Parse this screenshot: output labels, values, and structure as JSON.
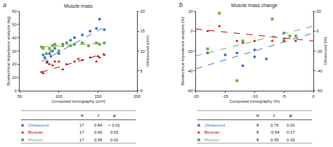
{
  "chart_data": [
    {
      "type": "scatter",
      "label": "a",
      "title": "Muscle mass",
      "x_label": "Computed tomography (cm²)",
      "y_label": "Bioelectrical impedance analysis (kg)",
      "y2_label": "Ultrasound (cm²)",
      "xlim": [
        50,
        200
      ],
      "xticks": [
        50,
        100,
        150,
        200
      ],
      "ylim": [
        0,
        60
      ],
      "yticks": [
        0,
        10,
        20,
        30,
        40,
        50,
        60
      ],
      "y2lim": [
        0,
        20
      ],
      "y2ticks": [
        0,
        5,
        10,
        15,
        20
      ],
      "grid": false,
      "series": [
        {
          "type": "scatter",
          "color": "#4472C4",
          "marker": "circle",
          "x": [
            80,
            82,
            85,
            88,
            90,
            92,
            95,
            100,
            105,
            110,
            115,
            120,
            130,
            140,
            148,
            152,
            158
          ],
          "values": [
            27,
            25,
            22,
            28,
            26,
            30,
            32,
            28,
            35,
            36,
            38,
            40,
            42,
            45,
            47,
            54,
            46
          ]
        },
        {
          "type": "scatter",
          "color": "#C00000",
          "marker": "triangle-up",
          "x": [
            78,
            80,
            85,
            88,
            92,
            95,
            100,
            105,
            110,
            120,
            125,
            130,
            140,
            148,
            150,
            152,
            158
          ],
          "values": [
            14,
            13,
            21,
            20,
            19,
            22,
            22,
            16,
            20,
            22,
            24,
            23,
            25,
            22,
            26,
            25,
            27
          ]
        },
        {
          "type": "scatter",
          "color": "#70AD47",
          "marker": "square",
          "x": [
            78,
            80,
            84,
            88,
            90,
            92,
            95,
            100,
            105,
            110,
            115,
            120,
            130,
            138,
            148,
            152,
            158
          ],
          "values": [
            33,
            32,
            28,
            32,
            30,
            34,
            35,
            30,
            34,
            36,
            34,
            35,
            36,
            34,
            36,
            35,
            36
          ]
        },
        {
          "type": "line",
          "color": "#4472C4",
          "line_style": "dashed",
          "x": [
            78,
            158
          ],
          "values": [
            22,
            48
          ]
        },
        {
          "type": "line",
          "color": "#C00000",
          "line_style": "dashed",
          "x": [
            78,
            158
          ],
          "values": [
            14,
            28
          ]
        },
        {
          "type": "line",
          "color": "#70AD47",
          "line_style": "dashed",
          "x": [
            78,
            158
          ],
          "values": [
            33,
            36
          ]
        }
      ],
      "table": {
        "columns": [
          "n",
          "r",
          "p"
        ],
        "rows": [
          {
            "label": "Ultrasound",
            "color": "#4472C4",
            "marker": "circle",
            "cells": [
              "17",
              "0.84",
              "< 0.01"
            ]
          },
          {
            "label": "Bioscan",
            "color": "#C00000",
            "marker": "triangle-up",
            "cells": [
              "17",
              "0.60",
              "0.01"
            ]
          },
          {
            "label": "Physion",
            "color": "#70AD47",
            "marker": "square",
            "cells": [
              "17",
              "0.55",
              "0.02"
            ]
          }
        ]
      }
    },
    {
      "type": "scatter",
      "label": "b",
      "title": "Muscle mass change",
      "x_label": "Computed tomography (%)",
      "y_label": "Bioelectrical impedance analysis (%)",
      "y2_label": "Ultrasound (%)",
      "xlim": [
        -20,
        0
      ],
      "xticks": [
        -20,
        -15,
        -10,
        -5,
        0
      ],
      "ylim": [
        -60,
        20
      ],
      "yticks": [
        -60,
        -40,
        -20,
        0,
        20
      ],
      "y2lim": [
        -60,
        20
      ],
      "y2ticks": [
        -60,
        -40,
        -20,
        0,
        20
      ],
      "grid": false,
      "series": [
        {
          "type": "scatter",
          "color": "#4472C4",
          "marker": "circle",
          "x": [
            -18,
            -15,
            -13,
            -12,
            -10,
            -10,
            -8,
            -5
          ],
          "values": [
            -22,
            -24,
            -22,
            -35,
            -26,
            -19,
            -28,
            -2
          ]
        },
        {
          "type": "scatter",
          "color": "#C00000",
          "marker": "triangle-up",
          "x": [
            -18,
            -16,
            -13,
            -12,
            -10,
            -7,
            -5,
            -3
          ],
          "values": [
            0,
            5,
            -10,
            -12,
            -10,
            -10,
            -10,
            -10
          ]
        },
        {
          "type": "scatter",
          "color": "#70AD47",
          "marker": "square",
          "x": [
            -18,
            -16,
            -13,
            -12,
            -7,
            -5,
            -4,
            -3
          ],
          "values": [
            -18,
            18,
            -50,
            -10,
            12,
            -8,
            -5,
            -5
          ]
        },
        {
          "type": "line",
          "color": "#4472C4",
          "line_style": "dashed",
          "x": [
            -20,
            0
          ],
          "values": [
            -38,
            -2
          ]
        },
        {
          "type": "line",
          "color": "#C00000",
          "line_style": "dashed",
          "x": [
            -20,
            0
          ],
          "values": [
            2,
            -10
          ]
        },
        {
          "type": "line",
          "color": "#70AD47",
          "line_style": "dashed",
          "x": [
            -20,
            0
          ],
          "values": [
            -25,
            5
          ]
        }
      ],
      "table": {
        "columns": [
          "n",
          "r",
          "p"
        ],
        "rows": [
          {
            "label": "Ultrasound",
            "color": "#4472C4",
            "marker": "circle",
            "cells": [
              "8",
              "0.76",
              "0.03"
            ]
          },
          {
            "label": "Bioscan",
            "color": "#C00000",
            "marker": "triangle-up",
            "cells": [
              "8",
              "-0.54",
              "0.17"
            ]
          },
          {
            "label": "Physion",
            "color": "#70AD47",
            "marker": "square",
            "cells": [
              "8",
              "0.35",
              "0.39"
            ]
          }
        ]
      }
    }
  ]
}
